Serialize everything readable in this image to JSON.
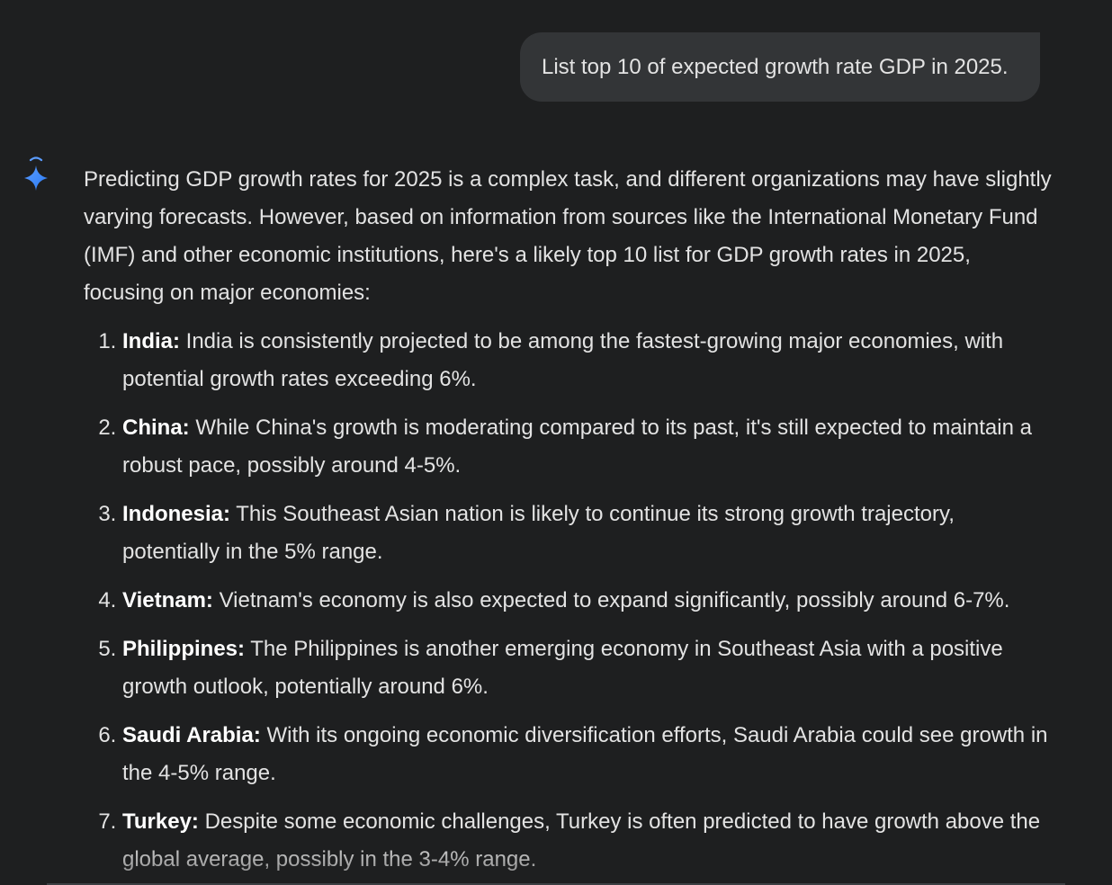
{
  "user_prompt": "List top 10 of expected growth rate GDP in 2025.",
  "assistant_icon": "gemini-sparkle-icon",
  "colors": {
    "background": "#1e1f20",
    "bubble": "#333537",
    "text": "#e3e3e3",
    "sparkle_blue": "#4285f4"
  },
  "response": {
    "intro": "Predicting GDP growth rates for 2025 is a complex task, and different organizations may have slightly varying forecasts. However, based on information from sources like the International Monetary Fund (IMF) and other economic institutions, here's a likely top 10 list for GDP growth rates in 2025, focusing on major economies:",
    "items": [
      {
        "title": "India:",
        "text": " India is consistently projected to be among the fastest-growing major economies, with potential growth rates exceeding 6%."
      },
      {
        "title": "China:",
        "text": " While China's growth is moderating compared to its past, it's still expected to maintain a robust pace, possibly around 4-5%."
      },
      {
        "title": "Indonesia:",
        "text": " This Southeast Asian nation is likely to continue its strong growth trajectory, potentially in the 5% range."
      },
      {
        "title": "Vietnam:",
        "text": " Vietnam's economy is also expected to expand significantly, possibly around 6-7%."
      },
      {
        "title": "Philippines:",
        "text": " The Philippines is another emerging economy in Southeast Asia with a positive growth outlook, potentially around 6%."
      },
      {
        "title": "Saudi Arabia:",
        "text": " With its ongoing economic diversification efforts, Saudi Arabia could see growth in the 4-5% range."
      },
      {
        "title": "Turkey:",
        "text": " Despite some economic challenges, Turkey is often predicted to have growth above the global average, possibly in the 3-4% range."
      }
    ]
  }
}
